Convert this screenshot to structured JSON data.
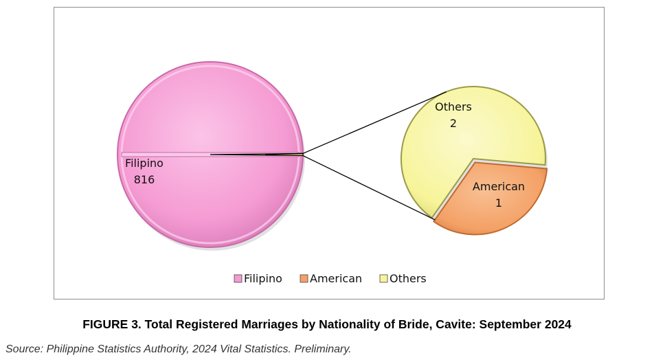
{
  "chart_data": {
    "type": "pie",
    "subtype": "pie-of-pie",
    "slices": [
      {
        "label": "Filipino",
        "value": 816,
        "color": "#f59bd3",
        "edge": "#c86aa8"
      },
      {
        "label": "American",
        "value": 1,
        "color": "#f4a166",
        "edge": "#c06a30"
      },
      {
        "label": "Others",
        "value": 2,
        "color": "#f7f49a",
        "edge": "#9a9a4a"
      }
    ],
    "primary_slices": [
      "Filipino"
    ],
    "secondary_slices": [
      "Others",
      "American"
    ],
    "data_labels": [
      {
        "name": "Filipino",
        "value": "816"
      },
      {
        "name": "Others",
        "value": "2"
      },
      {
        "name": "American",
        "value": "1"
      }
    ],
    "legend": {
      "placement": "bottom",
      "items": [
        "Filipino",
        "American",
        "Others"
      ]
    }
  },
  "caption": "FIGURE 3. Total Registered Marriages by Nationality of Bride, Cavite: September 2024",
  "source": "Source: Philippine Statistics Authority, 2024 Vital Statistics. Preliminary."
}
